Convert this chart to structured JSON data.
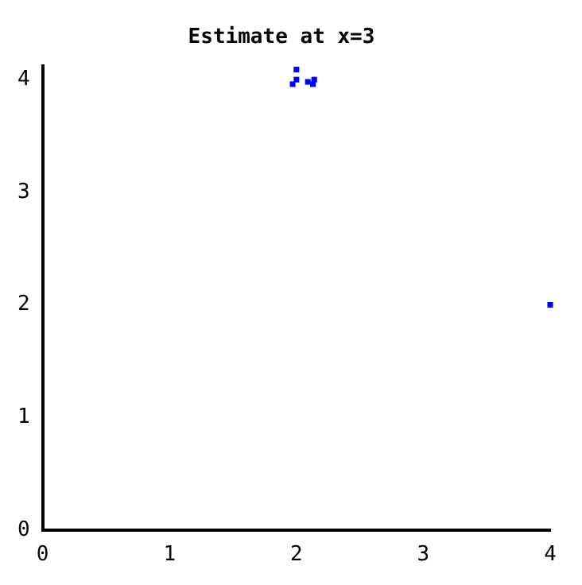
{
  "chart_data": {
    "type": "scatter",
    "title": "Estimate at x=3",
    "series": [
      {
        "color": "#0000ff",
        "x": [
          2.0,
          2.0,
          1.97,
          2.09,
          2.13,
          2.14,
          4.0
        ],
        "values": [
          4.09,
          4.0,
          3.96,
          3.98,
          3.96,
          4.0,
          2.0
        ]
      }
    ],
    "xlim": [
      0,
      4
    ],
    "xticks": [
      0,
      1,
      2,
      3,
      4
    ],
    "ylim": [
      0,
      4.12
    ],
    "yticks": [
      0,
      1,
      2,
      3,
      4
    ],
    "grid": false,
    "legend": false,
    "marker": "square"
  }
}
